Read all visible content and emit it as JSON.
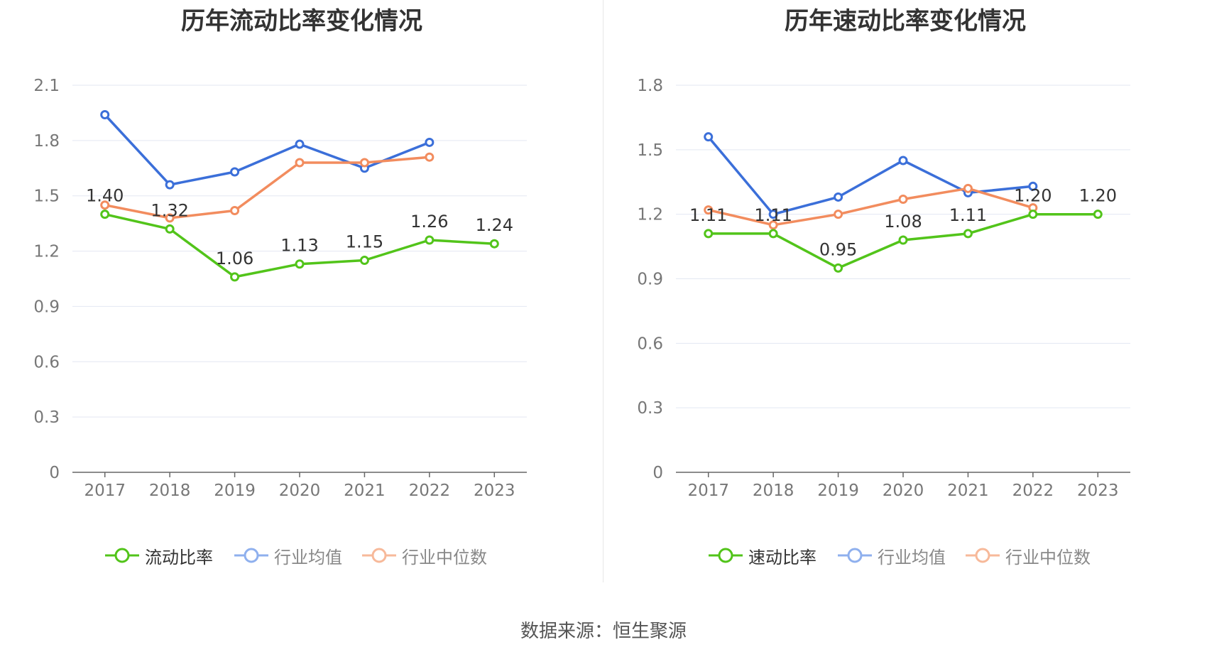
{
  "footer": {
    "source": "数据来源：恒生聚源"
  },
  "colors": {
    "primary": "#52c41a",
    "average": "#3b6fd9",
    "median": "#f28c5e",
    "grid": "#e3e7f2",
    "axis": "#666666"
  },
  "legend": {
    "left": [
      "流动比率",
      "行业均值",
      "行业中位数"
    ],
    "right": [
      "速动比率",
      "行业均值",
      "行业中位数"
    ]
  },
  "chart_data": [
    {
      "type": "line",
      "title": "历年流动比率变化情况",
      "categories": [
        "2017",
        "2018",
        "2019",
        "2020",
        "2021",
        "2022",
        "2023"
      ],
      "y_ticks": [
        "0",
        "0.3",
        "0.6",
        "0.9",
        "1.2",
        "1.5",
        "1.8",
        "2.1"
      ],
      "ylim": [
        0,
        2.1
      ],
      "grid": true,
      "legend_position": "bottom",
      "series": [
        {
          "name": "流动比率",
          "values": [
            1.4,
            1.32,
            1.06,
            1.13,
            1.15,
            1.26,
            1.24
          ],
          "labels": [
            "1.40",
            "1.32",
            "1.06",
            "1.13",
            "1.15",
            "1.26",
            "1.24"
          ]
        },
        {
          "name": "行业均值",
          "values": [
            1.94,
            1.56,
            1.63,
            1.78,
            1.65,
            1.79,
            null
          ]
        },
        {
          "name": "行业中位数",
          "values": [
            1.45,
            1.38,
            1.42,
            1.68,
            1.68,
            1.71,
            null
          ]
        }
      ]
    },
    {
      "type": "line",
      "title": "历年速动比率变化情况",
      "categories": [
        "2017",
        "2018",
        "2019",
        "2020",
        "2021",
        "2022",
        "2023"
      ],
      "y_ticks": [
        "0",
        "0.3",
        "0.6",
        "0.9",
        "1.2",
        "1.5",
        "1.8"
      ],
      "ylim": [
        0,
        1.8
      ],
      "grid": true,
      "legend_position": "bottom",
      "series": [
        {
          "name": "速动比率",
          "values": [
            1.11,
            1.11,
            0.95,
            1.08,
            1.11,
            1.2,
            1.2
          ],
          "labels": [
            "1.11",
            "1.11",
            "0.95",
            "1.08",
            "1.11",
            "1.20",
            "1.20"
          ]
        },
        {
          "name": "行业均值",
          "values": [
            1.56,
            1.2,
            1.28,
            1.45,
            1.3,
            1.33,
            null
          ]
        },
        {
          "name": "行业中位数",
          "values": [
            1.22,
            1.15,
            1.2,
            1.27,
            1.32,
            1.23,
            null
          ]
        }
      ]
    }
  ]
}
